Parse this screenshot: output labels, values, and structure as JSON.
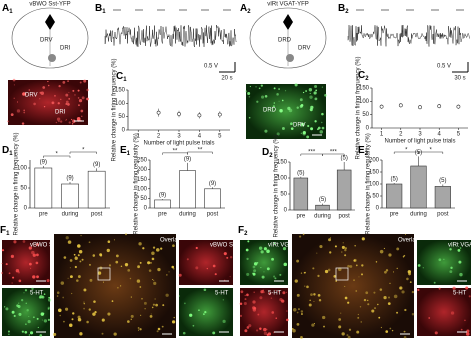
{
  "panels": {
    "A1": {
      "letter": "A",
      "index": "1",
      "title": "vBWO Sst-YFP",
      "regions": [
        "DRV",
        "DRI"
      ]
    },
    "A2": {
      "letter": "A",
      "index": "2",
      "title": "vIRt VGAT-YFP",
      "regions": [
        "DRD",
        "DRV"
      ]
    },
    "B1": {
      "letter": "B",
      "index": "1",
      "scale_v": "0.5 V",
      "scale_t": "20 s"
    },
    "B2": {
      "letter": "B",
      "index": "2",
      "scale_v": "0.5 V",
      "scale_t": "30 s"
    },
    "F1": {
      "letter": "F",
      "index": "1",
      "images": [
        "vBWO Sst-YFP",
        "5-HT",
        "Overlay",
        "vBWO Sst-YFP",
        "5-HT"
      ]
    },
    "F2": {
      "letter": "F",
      "index": "2",
      "images": [
        "vIRt VGAT-YFP",
        "5-HT",
        "Overlay",
        "vIRt VGAT-YFP",
        "5-HT"
      ]
    }
  },
  "chart_data": [
    {
      "type": "errorpoint",
      "letter": "C",
      "index": "1",
      "x": [
        2,
        3,
        4,
        5
      ],
      "values": [
        65,
        60,
        55,
        58
      ],
      "errors": [
        15,
        12,
        12,
        12
      ],
      "xlim": [
        0.5,
        5.5
      ],
      "xticks": [
        1,
        2,
        3,
        4,
        5
      ],
      "ylim": [
        0,
        150
      ],
      "yticks": [
        0,
        50,
        100,
        150
      ],
      "xlabel": "Number of light pulse trials",
      "ylabel": "Relative change in firing frequency (%)"
    },
    {
      "type": "errorpoint",
      "letter": "C",
      "index": "2",
      "x": [
        1,
        2,
        3,
        4,
        5
      ],
      "values": [
        80,
        85,
        78,
        82,
        80
      ],
      "errors": [
        8,
        8,
        8,
        8,
        8
      ],
      "xlim": [
        0.5,
        5.5
      ],
      "xticks": [
        1,
        2,
        3,
        4,
        5
      ],
      "ylim": [
        0,
        150
      ],
      "yticks": [
        0,
        50,
        100,
        150
      ],
      "xlabel": "Number of light pulse trials",
      "ylabel": "Relative change in firing frequency (%)"
    },
    {
      "type": "bar",
      "letter": "D",
      "index": "1",
      "categories": [
        "pre",
        "during",
        "post"
      ],
      "values": [
        100,
        60,
        92
      ],
      "errors": [
        5,
        5,
        7
      ],
      "n_labels": [
        "(9)",
        "(9)",
        "(9)"
      ],
      "color": "#ffffff",
      "significance": [
        "*",
        "*"
      ],
      "ylim": [
        0,
        120
      ],
      "yticks": [
        0,
        50,
        100
      ],
      "ylabel": "Relative change in firing frequency (%)"
    },
    {
      "type": "bar",
      "letter": "E",
      "index": "1",
      "categories": [
        "pre",
        "during",
        "post"
      ],
      "values": [
        42,
        195,
        100
      ],
      "errors": [
        5,
        40,
        8
      ],
      "n_labels": [
        "(9)",
        "(9)",
        "(9)"
      ],
      "color": "#ffffff",
      "significance": [
        "**",
        "**"
      ],
      "ylim": [
        0,
        250
      ],
      "yticks": [
        0,
        50,
        100,
        150,
        200,
        250
      ],
      "ylabel": "Relative change in firing regularity (%)"
    },
    {
      "type": "bar",
      "letter": "D",
      "index": "2",
      "categories": [
        "pre",
        "during",
        "post"
      ],
      "values": [
        100,
        15,
        125
      ],
      "errors": [
        4,
        5,
        25
      ],
      "n_labels": [
        "(5)",
        "(5)",
        "(5)"
      ],
      "color": "#a6a6a6",
      "significance": [
        "***",
        "***"
      ],
      "ylim": [
        0,
        150
      ],
      "yticks": [
        0,
        50,
        100,
        150
      ],
      "ylabel": "Relative change in firing frequency (%)"
    },
    {
      "type": "bar",
      "letter": "E",
      "index": "2",
      "categories": [
        "pre",
        "during",
        "post"
      ],
      "values": [
        100,
        175,
        90
      ],
      "errors": [
        4,
        40,
        8
      ],
      "n_labels": [
        "(5)",
        "(5)",
        "(5)"
      ],
      "color": "#a6a6a6",
      "significance": [
        "*",
        "*"
      ],
      "ylim": [
        0,
        200
      ],
      "yticks": [
        0,
        50,
        100,
        150,
        200
      ],
      "ylabel": "Relative change in firing regularity (%)"
    }
  ]
}
